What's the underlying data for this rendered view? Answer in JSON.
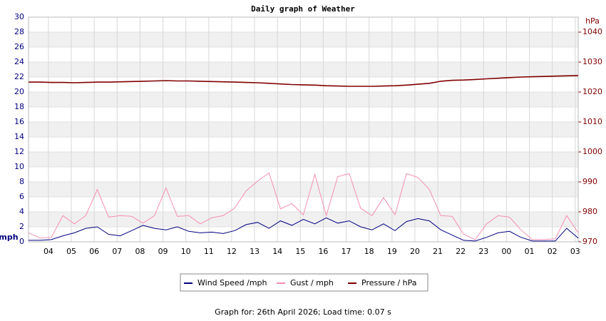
{
  "chart_data": {
    "type": "line",
    "title": "Daily graph of Weather",
    "y_label": "mph",
    "y2_label": "hPa",
    "x": [
      0,
      0.5,
      1,
      1.5,
      2,
      2.5,
      3,
      3.5,
      4,
      4.5,
      5,
      5.5,
      6,
      6.5,
      7,
      7.5,
      8,
      8.5,
      9,
      9.5,
      10,
      10.5,
      11,
      11.5,
      12,
      12.5,
      13,
      13.5,
      14,
      14.5,
      15,
      15.5,
      16,
      16.5,
      17,
      17.5,
      18,
      18.5,
      19,
      19.5,
      20,
      20.5,
      21,
      21.5,
      22,
      22.5,
      23,
      23.5,
      24
    ],
    "xlim": [
      0,
      24
    ],
    "xticks": [
      {
        "value": 0.87,
        "label": "04"
      },
      {
        "value": 1.87,
        "label": "05"
      },
      {
        "value": 2.87,
        "label": "06"
      },
      {
        "value": 3.87,
        "label": "07"
      },
      {
        "value": 4.87,
        "label": "08"
      },
      {
        "value": 5.87,
        "label": "09"
      },
      {
        "value": 6.87,
        "label": "10"
      },
      {
        "value": 7.87,
        "label": "11"
      },
      {
        "value": 8.87,
        "label": "12"
      },
      {
        "value": 9.87,
        "label": "13"
      },
      {
        "value": 10.87,
        "label": "14"
      },
      {
        "value": 11.87,
        "label": "15"
      },
      {
        "value": 12.87,
        "label": "16"
      },
      {
        "value": 13.87,
        "label": "17"
      },
      {
        "value": 14.87,
        "label": "18"
      },
      {
        "value": 15.87,
        "label": "19"
      },
      {
        "value": 16.87,
        "label": "20"
      },
      {
        "value": 17.87,
        "label": "21"
      },
      {
        "value": 18.87,
        "label": "22"
      },
      {
        "value": 19.87,
        "label": "23"
      },
      {
        "value": 20.87,
        "label": "00"
      },
      {
        "value": 21.87,
        "label": "01"
      },
      {
        "value": 22.87,
        "label": "02"
      },
      {
        "value": 23.87,
        "label": "03"
      }
    ],
    "ylim": [
      0,
      30
    ],
    "yticks": [
      0,
      2,
      4,
      6,
      8,
      10,
      12,
      14,
      16,
      18,
      20,
      22,
      24,
      26,
      28,
      30
    ],
    "y2lim": [
      970,
      1045
    ],
    "y2ticks": [
      970,
      980,
      990,
      1000,
      1010,
      1020,
      1030,
      1040
    ],
    "grid": true,
    "series": [
      {
        "name": "Wind Speed /mph",
        "color": "#000080",
        "values": [
          0.2,
          0.2,
          0.3,
          0.8,
          1.2,
          1.8,
          2.0,
          1.0,
          0.8,
          1.5,
          2.2,
          1.8,
          1.6,
          2.0,
          1.4,
          1.2,
          1.3,
          1.1,
          1.5,
          2.3,
          2.6,
          1.8,
          2.8,
          2.2,
          3.0,
          2.4,
          3.2,
          2.5,
          2.8,
          2.0,
          1.6,
          2.4,
          1.5,
          2.7,
          3.1,
          2.8,
          1.6,
          0.9,
          0.2,
          0.1,
          0.6,
          1.2,
          1.4,
          0.6,
          0.1,
          0.1,
          0.1,
          1.8,
          0.5
        ]
      },
      {
        "name": "Gust / mph",
        "color": "#f48fb1",
        "values": [
          1.2,
          0.5,
          0.6,
          3.5,
          2.4,
          3.5,
          7.0,
          3.3,
          3.5,
          3.4,
          2.5,
          3.5,
          7.2,
          3.4,
          3.5,
          2.4,
          3.2,
          3.5,
          4.5,
          6.8,
          8.1,
          9.2,
          4.4,
          5.1,
          3.6,
          9.0,
          3.5,
          8.7,
          9.1,
          4.5,
          3.5,
          5.9,
          3.6,
          9.1,
          8.6,
          7.0,
          3.5,
          3.4,
          1.0,
          0.3,
          2.4,
          3.5,
          3.3,
          1.6,
          0.3,
          0.3,
          0.4,
          3.5,
          1.2
        ]
      },
      {
        "name": "Pressure / hPa",
        "color": "#800000",
        "axis": "y2",
        "values": [
          1023.3,
          1023.3,
          1023.2,
          1023.2,
          1023.1,
          1023.2,
          1023.3,
          1023.3,
          1023.4,
          1023.5,
          1023.6,
          1023.7,
          1023.8,
          1023.7,
          1023.7,
          1023.6,
          1023.5,
          1023.4,
          1023.3,
          1023.2,
          1023.1,
          1022.9,
          1022.7,
          1022.5,
          1022.4,
          1022.3,
          1022.1,
          1022.0,
          1021.9,
          1021.9,
          1021.9,
          1022.0,
          1022.1,
          1022.3,
          1022.6,
          1022.9,
          1023.6,
          1023.9,
          1024.0,
          1024.2,
          1024.4,
          1024.6,
          1024.8,
          1025.0,
          1025.1,
          1025.2,
          1025.3,
          1025.4,
          1025.5
        ]
      }
    ]
  },
  "footer": "Graph for: 26th April 2026; Load time: 0.07 s"
}
